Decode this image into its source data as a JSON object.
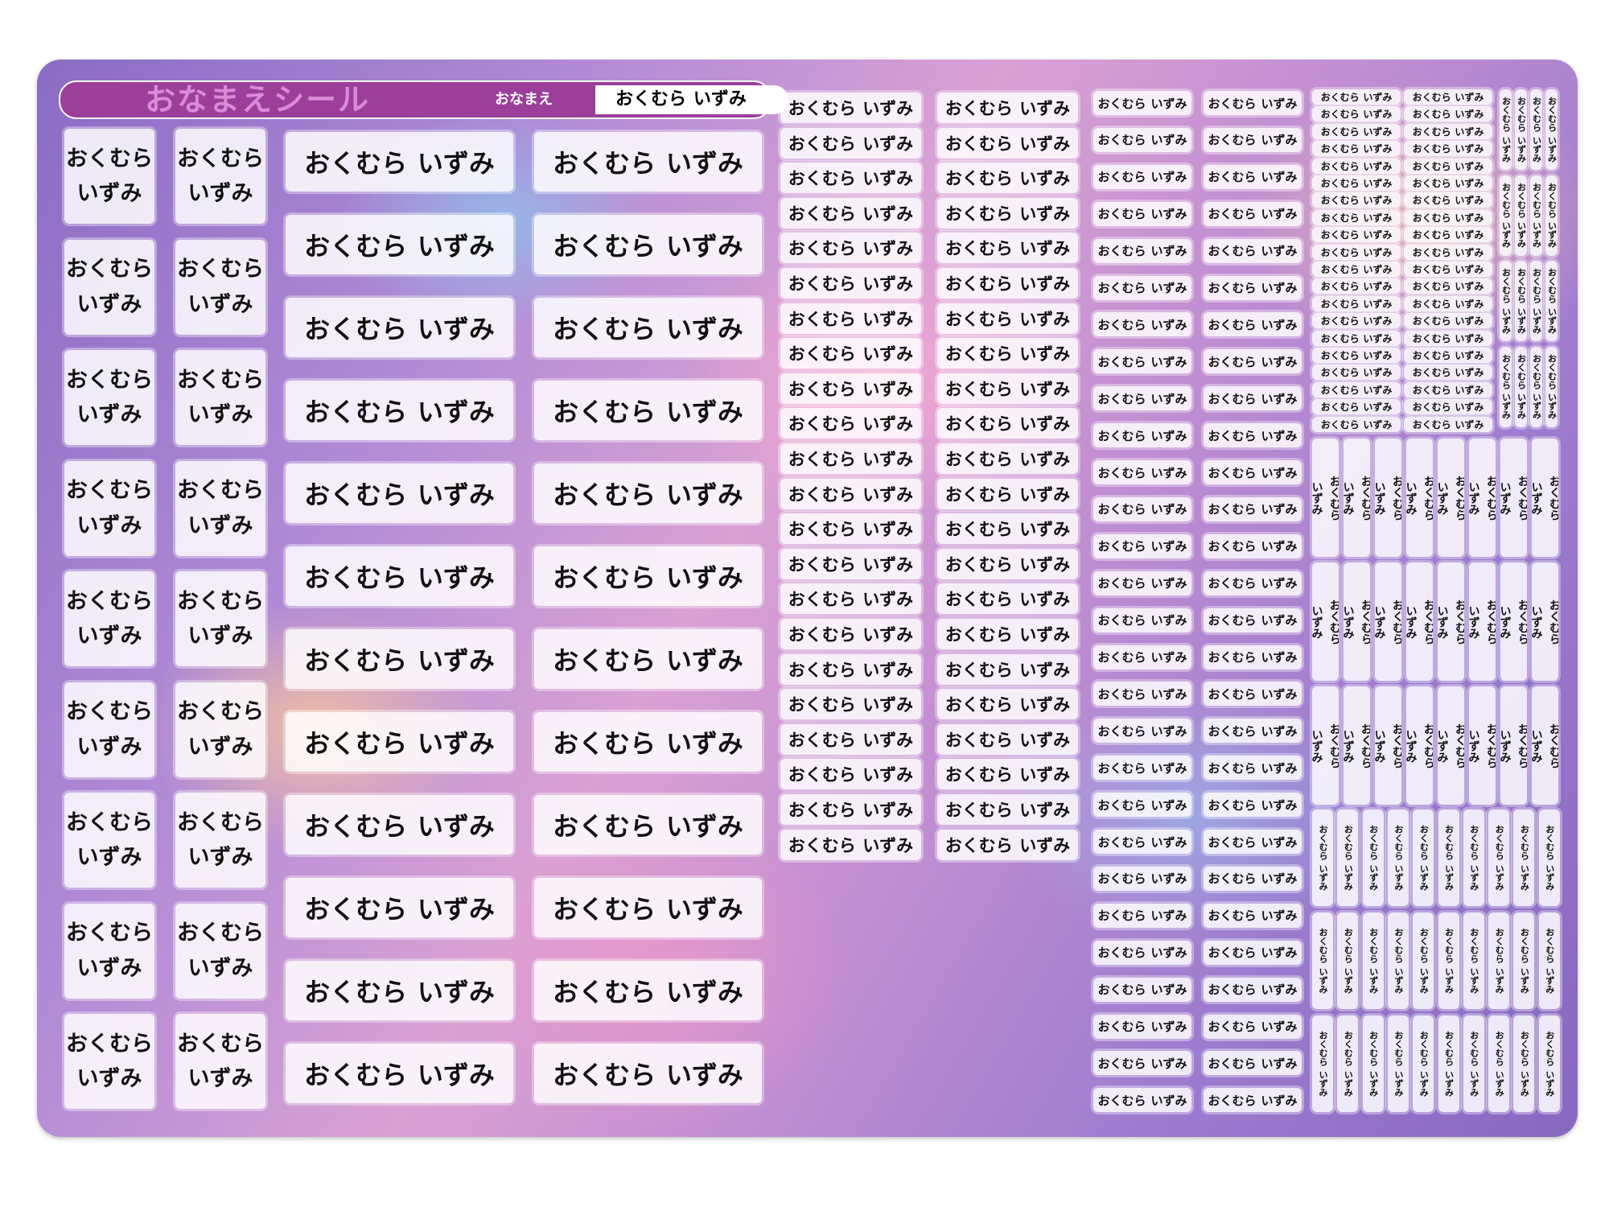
{
  "header": {
    "title": "おなまえシール",
    "label": "おなまえ"
  },
  "name": {
    "family": "おくむら",
    "given": "いずみ"
  }
}
